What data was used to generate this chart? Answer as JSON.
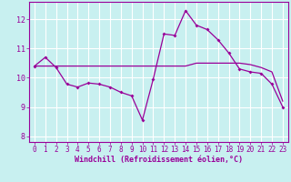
{
  "xlabel": "Windchill (Refroidissement éolien,°C)",
  "bg_color": "#c8f0f0",
  "line_color": "#990099",
  "grid_color": "#ffffff",
  "xmin": -0.5,
  "xmax": 23.5,
  "ymin": 7.8,
  "ymax": 12.6,
  "yticks": [
    8,
    9,
    10,
    11,
    12
  ],
  "xticks": [
    0,
    1,
    2,
    3,
    4,
    5,
    6,
    7,
    8,
    9,
    10,
    11,
    12,
    13,
    14,
    15,
    16,
    17,
    18,
    19,
    20,
    21,
    22,
    23
  ],
  "curve1_x": [
    0,
    1,
    2,
    3,
    4,
    5,
    6,
    7,
    8,
    9,
    10,
    11,
    12,
    13,
    14,
    15,
    16,
    17,
    18,
    19,
    20,
    21,
    22,
    23
  ],
  "curve1_y": [
    10.4,
    10.7,
    10.35,
    9.78,
    9.68,
    9.82,
    9.78,
    9.68,
    9.5,
    9.38,
    8.55,
    9.95,
    11.5,
    11.45,
    12.3,
    11.8,
    11.65,
    11.3,
    10.85,
    10.3,
    10.2,
    10.15,
    9.78,
    9.0
  ],
  "curve2_x": [
    0,
    1,
    2,
    3,
    4,
    5,
    6,
    7,
    8,
    9,
    10,
    11,
    12,
    13,
    14,
    15,
    16,
    17,
    18,
    19,
    20,
    21,
    22,
    23
  ],
  "curve2_y": [
    10.4,
    10.4,
    10.4,
    10.4,
    10.4,
    10.4,
    10.4,
    10.4,
    10.4,
    10.4,
    10.4,
    10.4,
    10.4,
    10.4,
    10.4,
    10.5,
    10.5,
    10.5,
    10.5,
    10.5,
    10.45,
    10.35,
    10.2,
    9.2
  ],
  "tick_fontsize": 5.5,
  "xlabel_fontsize": 6.0
}
